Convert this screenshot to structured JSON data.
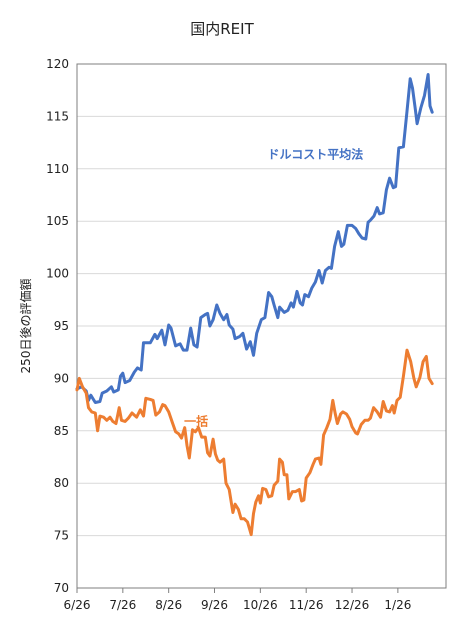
{
  "chart_data": {
    "type": "line",
    "title": "国内REIT",
    "xlabel": "",
    "ylabel": "250日後の評価額",
    "ylim": [
      70,
      120
    ],
    "yticks": [
      70,
      75,
      80,
      85,
      90,
      95,
      100,
      105,
      110,
      115,
      120
    ],
    "xlim": [
      0,
      8.05
    ],
    "xticks": [
      {
        "label": "6/26",
        "x": 0
      },
      {
        "label": "7/26",
        "x": 1
      },
      {
        "label": "8/26",
        "x": 2
      },
      {
        "label": "9/26",
        "x": 3
      },
      {
        "label": "10/26",
        "x": 4
      },
      {
        "label": "11/26",
        "x": 5
      },
      {
        "label": "12/26",
        "x": 6
      },
      {
        "label": "1/26",
        "x": 7
      }
    ],
    "grid": true,
    "legend": "none",
    "colors": {
      "dca": "#4472c4",
      "lump": "#ed7d31"
    },
    "series": [
      {
        "name": "ドルコスト平均法",
        "color": "#4472c4",
        "annotation": {
          "text": "ドルコスト平均法",
          "x": 5.2,
          "y": 111
        },
        "points": [
          [
            0.0,
            89.0
          ],
          [
            0.1,
            89.2
          ],
          [
            0.2,
            88.8
          ],
          [
            0.25,
            87.9
          ],
          [
            0.3,
            88.4
          ],
          [
            0.4,
            87.7
          ],
          [
            0.5,
            87.8
          ],
          [
            0.55,
            88.6
          ],
          [
            0.65,
            88.8
          ],
          [
            0.75,
            89.2
          ],
          [
            0.8,
            88.7
          ],
          [
            0.9,
            88.9
          ],
          [
            0.95,
            90.2
          ],
          [
            1.0,
            90.5
          ],
          [
            1.05,
            89.6
          ],
          [
            1.15,
            89.8
          ],
          [
            1.25,
            90.6
          ],
          [
            1.32,
            91.0
          ],
          [
            1.4,
            90.8
          ],
          [
            1.45,
            93.4
          ],
          [
            1.6,
            93.4
          ],
          [
            1.7,
            94.2
          ],
          [
            1.75,
            93.8
          ],
          [
            1.85,
            94.6
          ],
          [
            1.92,
            93.2
          ],
          [
            2.0,
            95.1
          ],
          [
            2.05,
            94.8
          ],
          [
            2.15,
            93.1
          ],
          [
            2.25,
            93.3
          ],
          [
            2.32,
            92.7
          ],
          [
            2.4,
            92.7
          ],
          [
            2.48,
            94.8
          ],
          [
            2.55,
            93.2
          ],
          [
            2.62,
            93.0
          ],
          [
            2.7,
            95.8
          ],
          [
            2.8,
            96.1
          ],
          [
            2.85,
            96.2
          ],
          [
            2.9,
            95.0
          ],
          [
            2.97,
            95.6
          ],
          [
            3.05,
            97.0
          ],
          [
            3.12,
            96.2
          ],
          [
            3.2,
            95.6
          ],
          [
            3.27,
            96.1
          ],
          [
            3.32,
            95.1
          ],
          [
            3.4,
            94.7
          ],
          [
            3.45,
            93.8
          ],
          [
            3.55,
            94.0
          ],
          [
            3.62,
            94.3
          ],
          [
            3.7,
            92.8
          ],
          [
            3.78,
            93.5
          ],
          [
            3.85,
            92.2
          ],
          [
            3.92,
            94.3
          ],
          [
            4.02,
            95.6
          ],
          [
            4.1,
            95.8
          ],
          [
            4.18,
            98.2
          ],
          [
            4.25,
            97.8
          ],
          [
            4.3,
            97.0
          ],
          [
            4.38,
            95.8
          ],
          [
            4.42,
            96.8
          ],
          [
            4.52,
            96.3
          ],
          [
            4.6,
            96.5
          ],
          [
            4.67,
            97.2
          ],
          [
            4.72,
            96.8
          ],
          [
            4.8,
            98.3
          ],
          [
            4.87,
            97.2
          ],
          [
            4.92,
            97.0
          ],
          [
            4.97,
            98.0
          ],
          [
            5.05,
            97.8
          ],
          [
            5.12,
            98.6
          ],
          [
            5.2,
            99.2
          ],
          [
            5.28,
            100.3
          ],
          [
            5.35,
            99.1
          ],
          [
            5.42,
            100.3
          ],
          [
            5.5,
            100.6
          ],
          [
            5.55,
            100.5
          ],
          [
            5.62,
            102.6
          ],
          [
            5.7,
            104.0
          ],
          [
            5.77,
            102.6
          ],
          [
            5.82,
            102.8
          ],
          [
            5.9,
            104.6
          ],
          [
            6.0,
            104.6
          ],
          [
            6.08,
            104.3
          ],
          [
            6.15,
            103.8
          ],
          [
            6.22,
            103.4
          ],
          [
            6.3,
            103.3
          ],
          [
            6.35,
            104.9
          ],
          [
            6.4,
            105.1
          ],
          [
            6.48,
            105.5
          ],
          [
            6.55,
            106.3
          ],
          [
            6.6,
            105.7
          ],
          [
            6.68,
            105.8
          ],
          [
            6.75,
            108.0
          ],
          [
            6.82,
            109.1
          ],
          [
            6.9,
            108.2
          ],
          [
            6.95,
            108.3
          ],
          [
            7.02,
            112.0
          ],
          [
            7.12,
            112.1
          ],
          [
            7.2,
            115.5
          ],
          [
            7.27,
            118.6
          ],
          [
            7.32,
            117.7
          ],
          [
            7.38,
            115.7
          ],
          [
            7.42,
            114.3
          ],
          [
            7.5,
            115.8
          ],
          [
            7.58,
            117.0
          ],
          [
            7.66,
            119.0
          ],
          [
            7.7,
            116.0
          ],
          [
            7.75,
            115.4
          ]
        ]
      },
      {
        "name": "一括",
        "color": "#ed7d31",
        "annotation": {
          "text": "一括",
          "x": 2.6,
          "y": 85.5
        },
        "points": [
          [
            0.0,
            88.9
          ],
          [
            0.05,
            90.0
          ],
          [
            0.12,
            89.2
          ],
          [
            0.2,
            88.6
          ],
          [
            0.25,
            87.2
          ],
          [
            0.32,
            86.8
          ],
          [
            0.4,
            86.7
          ],
          [
            0.45,
            85.0
          ],
          [
            0.5,
            86.4
          ],
          [
            0.58,
            86.3
          ],
          [
            0.65,
            86.0
          ],
          [
            0.72,
            86.3
          ],
          [
            0.78,
            85.9
          ],
          [
            0.85,
            85.7
          ],
          [
            0.92,
            87.2
          ],
          [
            0.97,
            86.0
          ],
          [
            1.05,
            85.9
          ],
          [
            1.12,
            86.2
          ],
          [
            1.2,
            86.7
          ],
          [
            1.3,
            86.3
          ],
          [
            1.38,
            87.0
          ],
          [
            1.45,
            86.4
          ],
          [
            1.5,
            88.1
          ],
          [
            1.6,
            88.0
          ],
          [
            1.66,
            87.9
          ],
          [
            1.72,
            86.5
          ],
          [
            1.8,
            86.8
          ],
          [
            1.87,
            87.5
          ],
          [
            1.92,
            87.4
          ],
          [
            2.0,
            86.8
          ],
          [
            2.08,
            85.8
          ],
          [
            2.15,
            84.9
          ],
          [
            2.22,
            84.7
          ],
          [
            2.28,
            84.3
          ],
          [
            2.35,
            85.3
          ],
          [
            2.4,
            83.6
          ],
          [
            2.45,
            82.4
          ],
          [
            2.52,
            85.1
          ],
          [
            2.58,
            84.9
          ],
          [
            2.65,
            85.3
          ],
          [
            2.72,
            84.4
          ],
          [
            2.8,
            84.4
          ],
          [
            2.85,
            82.9
          ],
          [
            2.9,
            82.6
          ],
          [
            2.97,
            84.2
          ],
          [
            3.02,
            82.8
          ],
          [
            3.07,
            82.2
          ],
          [
            3.12,
            82.0
          ],
          [
            3.2,
            82.3
          ],
          [
            3.25,
            80.0
          ],
          [
            3.32,
            79.4
          ],
          [
            3.4,
            77.2
          ],
          [
            3.45,
            78.0
          ],
          [
            3.52,
            77.5
          ],
          [
            3.58,
            76.6
          ],
          [
            3.65,
            76.6
          ],
          [
            3.72,
            76.3
          ],
          [
            3.8,
            75.1
          ],
          [
            3.85,
            77.1
          ],
          [
            3.9,
            78.2
          ],
          [
            3.96,
            78.8
          ],
          [
            4.0,
            78.1
          ],
          [
            4.05,
            79.5
          ],
          [
            4.12,
            79.4
          ],
          [
            4.18,
            78.7
          ],
          [
            4.25,
            78.8
          ],
          [
            4.3,
            79.8
          ],
          [
            4.38,
            80.2
          ],
          [
            4.42,
            82.3
          ],
          [
            4.48,
            82.0
          ],
          [
            4.52,
            80.8
          ],
          [
            4.58,
            80.8
          ],
          [
            4.62,
            78.5
          ],
          [
            4.7,
            79.2
          ],
          [
            4.77,
            79.2
          ],
          [
            4.85,
            79.4
          ],
          [
            4.9,
            78.3
          ],
          [
            4.95,
            78.4
          ],
          [
            5.0,
            80.5
          ],
          [
            5.08,
            81.0
          ],
          [
            5.15,
            81.8
          ],
          [
            5.2,
            82.3
          ],
          [
            5.28,
            82.4
          ],
          [
            5.32,
            81.8
          ],
          [
            5.38,
            84.6
          ],
          [
            5.45,
            85.3
          ],
          [
            5.52,
            86.1
          ],
          [
            5.58,
            87.9
          ],
          [
            5.63,
            86.7
          ],
          [
            5.68,
            85.7
          ],
          [
            5.75,
            86.6
          ],
          [
            5.8,
            86.8
          ],
          [
            5.88,
            86.6
          ],
          [
            5.95,
            86.1
          ],
          [
            6.0,
            85.4
          ],
          [
            6.08,
            84.8
          ],
          [
            6.12,
            84.7
          ],
          [
            6.2,
            85.6
          ],
          [
            6.28,
            86.0
          ],
          [
            6.35,
            86.0
          ],
          [
            6.4,
            86.2
          ],
          [
            6.47,
            87.2
          ],
          [
            6.55,
            86.8
          ],
          [
            6.62,
            86.3
          ],
          [
            6.68,
            87.8
          ],
          [
            6.75,
            86.9
          ],
          [
            6.82,
            86.8
          ],
          [
            6.88,
            87.4
          ],
          [
            6.92,
            86.7
          ],
          [
            6.98,
            87.9
          ],
          [
            7.05,
            88.2
          ],
          [
            7.12,
            90.2
          ],
          [
            7.2,
            92.7
          ],
          [
            7.28,
            91.6
          ],
          [
            7.35,
            90.0
          ],
          [
            7.4,
            89.2
          ],
          [
            7.48,
            90.1
          ],
          [
            7.55,
            91.6
          ],
          [
            7.62,
            92.1
          ],
          [
            7.68,
            90.0
          ],
          [
            7.75,
            89.5
          ]
        ]
      }
    ]
  }
}
